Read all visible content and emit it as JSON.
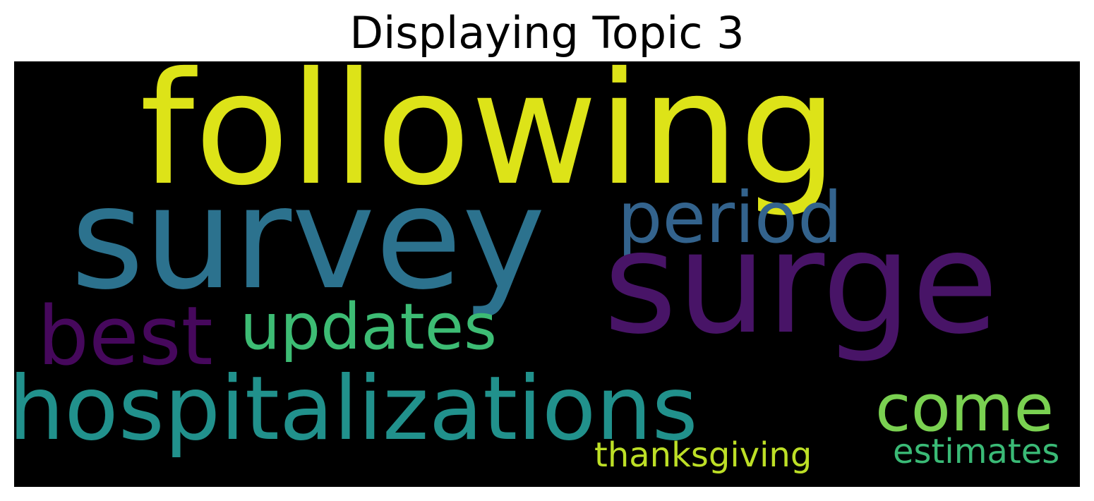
{
  "title": "Displaying Topic 3",
  "cloud": {
    "background_color": "#000000",
    "words": {
      "following": {
        "text": "following",
        "color": "#dde318"
      },
      "survey": {
        "text": "survey",
        "color": "#2c728e"
      },
      "surge": {
        "text": "surge",
        "color": "#481467"
      },
      "period": {
        "text": "period",
        "color": "#33638d"
      },
      "updates": {
        "text": "updates",
        "color": "#3dbc74"
      },
      "best": {
        "text": "best",
        "color": "#46085c"
      },
      "hospitalizations": {
        "text": "hospitalizations",
        "color": "#21918c"
      },
      "come": {
        "text": "come",
        "color": "#7ad151"
      },
      "thanksgiving": {
        "text": "thanksgiving",
        "color": "#bddf26"
      },
      "estimates": {
        "text": "estimates",
        "color": "#3aba76"
      }
    }
  }
}
